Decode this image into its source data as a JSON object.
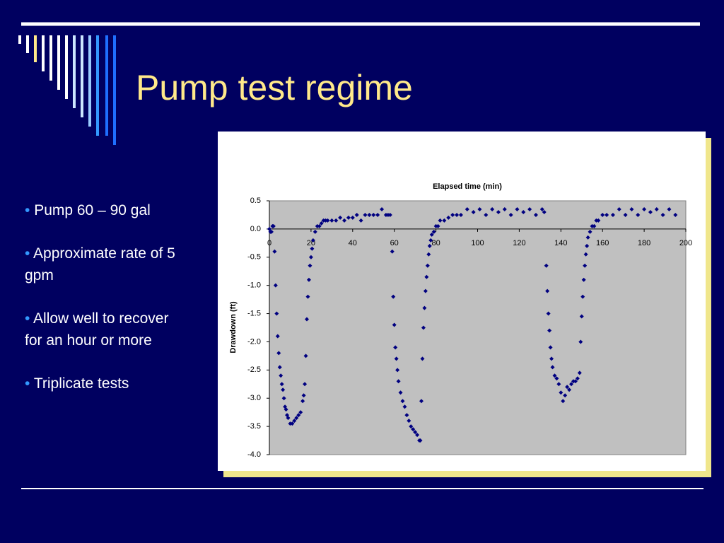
{
  "slide": {
    "title": "Pump test regime",
    "bullets": [
      "Pump 60 – 90 gal",
      "Approximate rate of 5 gpm",
      "Allow well to recover for an hour or more",
      "Triplicate tests"
    ]
  },
  "chart_data": {
    "type": "scatter",
    "x_label": "Elapsed time (min)",
    "y_label": "Drawdown (ft)",
    "x": [
      0,
      0.5,
      1,
      1.5,
      2,
      2.5,
      3,
      3.5,
      4,
      4.5,
      5,
      5.5,
      6,
      6.5,
      7,
      7.5,
      8,
      8.5,
      9,
      10,
      11,
      12,
      13,
      14,
      15,
      16,
      16.5,
      17,
      17.5,
      18,
      18.5,
      19,
      19.5,
      20,
      20.5,
      21,
      22,
      23,
      24,
      25,
      26,
      27,
      28,
      30,
      32,
      34,
      36,
      38,
      40,
      42,
      44,
      46,
      48,
      50,
      52,
      54,
      56,
      57,
      58,
      59,
      59.5,
      60,
      60.5,
      61,
      61.5,
      62,
      63,
      64,
      65,
      66,
      67,
      68,
      69,
      70,
      71,
      72,
      72.5,
      73,
      73.5,
      74,
      74.5,
      75,
      75.5,
      76,
      76.5,
      77,
      77.5,
      78,
      79,
      80,
      81,
      82,
      84,
      86,
      88,
      90,
      92,
      95,
      98,
      101,
      104,
      107,
      110,
      113,
      116,
      119,
      122,
      125,
      128,
      131,
      132,
      133,
      133.5,
      134,
      134.5,
      135,
      135.5,
      136,
      137,
      138,
      139,
      140,
      141,
      142,
      143,
      144,
      145,
      146,
      147,
      148,
      149,
      149.5,
      150,
      150.5,
      151,
      151.5,
      152,
      152.5,
      153,
      154,
      155,
      156,
      157,
      158,
      160,
      162,
      165,
      168,
      171,
      174,
      177,
      180,
      183,
      186,
      189,
      192,
      195
    ],
    "series": [
      {
        "color": "#000080",
        "values": [
          0,
          -0.05,
          -0.05,
          0.05,
          0.05,
          -0.4,
          -1.0,
          -1.5,
          -1.9,
          -2.2,
          -2.45,
          -2.6,
          -2.75,
          -2.85,
          -3.0,
          -3.15,
          -3.2,
          -3.3,
          -3.35,
          -3.45,
          -3.45,
          -3.4,
          -3.35,
          -3.3,
          -3.25,
          -3.05,
          -2.95,
          -2.75,
          -2.25,
          -1.6,
          -1.2,
          -0.9,
          -0.65,
          -0.5,
          -0.35,
          -0.2,
          -0.05,
          0.05,
          0.05,
          0.1,
          0.15,
          0.15,
          0.15,
          0.15,
          0.15,
          0.2,
          0.15,
          0.2,
          0.2,
          0.25,
          0.15,
          0.25,
          0.25,
          0.25,
          0.25,
          0.35,
          0.25,
          0.25,
          0.25,
          -0.4,
          -1.2,
          -1.7,
          -2.1,
          -2.3,
          -2.5,
          -2.7,
          -2.9,
          -3.05,
          -3.15,
          -3.3,
          -3.4,
          -3.5,
          -3.55,
          -3.6,
          -3.65,
          -3.75,
          -3.75,
          -3.05,
          -2.3,
          -1.75,
          -1.4,
          -1.1,
          -0.85,
          -0.65,
          -0.45,
          -0.3,
          -0.2,
          -0.1,
          -0.05,
          0.05,
          0.05,
          0.15,
          0.15,
          0.2,
          0.25,
          0.25,
          0.25,
          0.35,
          0.3,
          0.35,
          0.25,
          0.35,
          0.3,
          0.35,
          0.25,
          0.35,
          0.3,
          0.35,
          0.25,
          0.35,
          0.3,
          -0.65,
          -1.1,
          -1.5,
          -1.8,
          -2.1,
          -2.3,
          -2.45,
          -2.6,
          -2.65,
          -2.75,
          -2.9,
          -3.05,
          -2.95,
          -2.8,
          -2.85,
          -2.75,
          -2.7,
          -2.7,
          -2.65,
          -2.55,
          -2.0,
          -1.55,
          -1.2,
          -0.9,
          -0.65,
          -0.45,
          -0.3,
          -0.15,
          -0.05,
          0.05,
          0.05,
          0.15,
          0.15,
          0.25,
          0.25,
          0.25,
          0.35,
          0.25,
          0.35,
          0.25,
          0.35,
          0.3,
          0.35,
          0.25,
          0.35,
          0.25
        ]
      }
    ],
    "xlim": [
      0,
      200
    ],
    "xticks": [
      0,
      20,
      40,
      60,
      80,
      100,
      120,
      140,
      160,
      180,
      200
    ],
    "ylim": [
      -4,
      0.5
    ],
    "yticks": [
      0.5,
      {
        "value": 0,
        "label": "0.0"
      },
      -0.5,
      {
        "value": -1,
        "label": "-1.0"
      },
      -1.5,
      {
        "value": -2,
        "label": "-2.0"
      },
      -2.5,
      {
        "value": -3,
        "label": "-3.0"
      },
      -3.5,
      {
        "value": -4,
        "label": "-4.0"
      }
    ],
    "grid": false,
    "plot_background": "#c0c0c0"
  }
}
